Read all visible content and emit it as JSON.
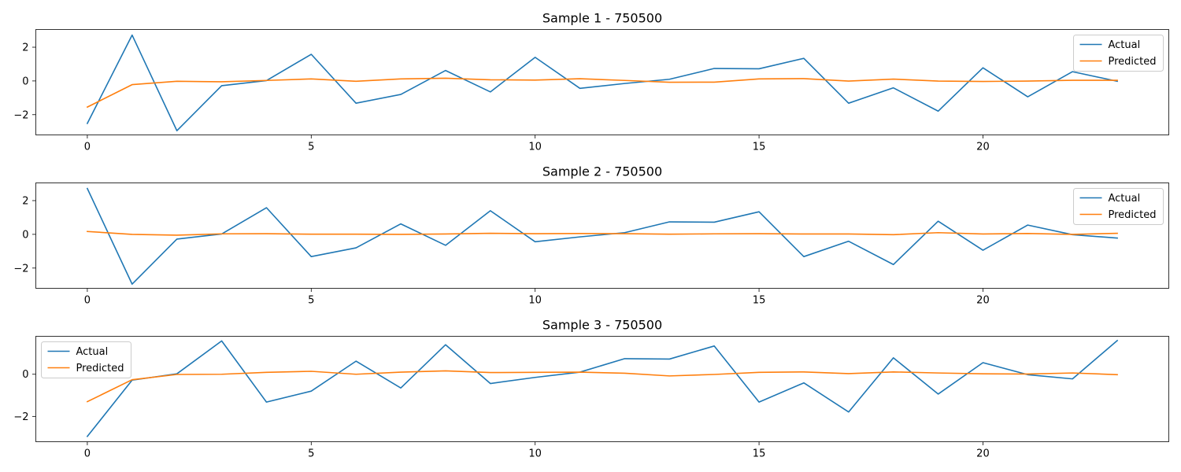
{
  "chart_data": [
    {
      "type": "line",
      "title": "Sample 1 - 750500",
      "xlabel": "",
      "ylabel": "",
      "x": [
        0,
        1,
        2,
        3,
        4,
        5,
        6,
        7,
        8,
        9,
        10,
        11,
        12,
        13,
        14,
        15,
        16,
        17,
        18,
        19,
        20,
        21,
        22,
        23
      ],
      "xlim": [
        -1.15,
        24.15
      ],
      "ylim": [
        -3.2,
        3.05
      ],
      "xticks": [
        0,
        5,
        10,
        15,
        20
      ],
      "yticks": [
        -2,
        0,
        2
      ],
      "legend_position": "upper-right",
      "grid": false,
      "series": [
        {
          "name": "Actual",
          "color": "#1f77b4",
          "values": [
            -2.52,
            2.72,
            -2.95,
            -0.28,
            0.02,
            1.58,
            -1.32,
            -0.8,
            0.62,
            -0.65,
            1.4,
            -0.44,
            -0.15,
            0.1,
            0.74,
            0.72,
            1.34,
            -1.32,
            -0.41,
            -1.79,
            0.78,
            -0.94,
            0.55,
            -0.02
          ]
        },
        {
          "name": "Predicted",
          "color": "#ff7f0e",
          "values": [
            -1.55,
            -0.22,
            -0.02,
            -0.05,
            0.03,
            0.12,
            -0.02,
            0.12,
            0.16,
            0.07,
            0.05,
            0.13,
            0.03,
            -0.08,
            -0.07,
            0.12,
            0.14,
            -0.01,
            0.11,
            -0.01,
            -0.03,
            -0.01,
            0.04,
            0.04
          ]
        }
      ]
    },
    {
      "type": "line",
      "title": "Sample 2 - 750500",
      "xlabel": "",
      "ylabel": "",
      "x": [
        0,
        1,
        2,
        3,
        4,
        5,
        6,
        7,
        8,
        9,
        10,
        11,
        12,
        13,
        14,
        15,
        16,
        17,
        18,
        19,
        20,
        21,
        22,
        23
      ],
      "xlim": [
        -1.15,
        24.15
      ],
      "ylim": [
        -3.2,
        3.05
      ],
      "xticks": [
        0,
        5,
        10,
        15,
        20
      ],
      "yticks": [
        -2,
        0,
        2
      ],
      "legend_position": "upper-right",
      "grid": false,
      "series": [
        {
          "name": "Actual",
          "color": "#1f77b4",
          "values": [
            2.72,
            -2.95,
            -0.28,
            0.02,
            1.58,
            -1.32,
            -0.8,
            0.62,
            -0.65,
            1.4,
            -0.44,
            -0.15,
            0.1,
            0.74,
            0.72,
            1.34,
            -1.32,
            -0.41,
            -1.79,
            0.78,
            -0.94,
            0.55,
            -0.02,
            -0.22
          ]
        },
        {
          "name": "Predicted",
          "color": "#ff7f0e",
          "values": [
            0.17,
            0.0,
            -0.05,
            0.03,
            0.04,
            0.01,
            0.01,
            0.0,
            0.02,
            0.06,
            0.04,
            0.05,
            0.04,
            0.01,
            0.03,
            0.04,
            0.02,
            0.02,
            -0.02,
            0.1,
            0.02,
            0.05,
            0.0,
            0.06
          ]
        }
      ]
    },
    {
      "type": "line",
      "title": "Sample 3 - 750500",
      "xlabel": "",
      "ylabel": "",
      "x": [
        0,
        1,
        2,
        3,
        4,
        5,
        6,
        7,
        8,
        9,
        10,
        11,
        12,
        13,
        14,
        15,
        16,
        17,
        18,
        19,
        20,
        21,
        22,
        23
      ],
      "xlim": [
        -1.15,
        24.15
      ],
      "ylim": [
        -3.2,
        1.8
      ],
      "xticks": [
        0,
        5,
        10,
        15,
        20
      ],
      "yticks": [
        -2,
        0
      ],
      "legend_position": "upper-left",
      "grid": false,
      "series": [
        {
          "name": "Actual",
          "color": "#1f77b4",
          "values": [
            -2.95,
            -0.28,
            0.02,
            1.58,
            -1.32,
            -0.8,
            0.62,
            -0.65,
            1.4,
            -0.44,
            -0.15,
            0.1,
            0.74,
            0.72,
            1.34,
            -1.32,
            -0.41,
            -1.79,
            0.78,
            -0.94,
            0.55,
            -0.02,
            -0.22,
            1.6
          ]
        },
        {
          "name": "Predicted",
          "color": "#ff7f0e",
          "values": [
            -1.3,
            -0.26,
            -0.01,
            0.0,
            0.09,
            0.14,
            0.0,
            0.1,
            0.16,
            0.08,
            0.09,
            0.1,
            0.05,
            -0.08,
            -0.01,
            0.09,
            0.11,
            0.03,
            0.11,
            0.06,
            0.02,
            0.01,
            0.06,
            -0.02
          ]
        }
      ]
    }
  ]
}
